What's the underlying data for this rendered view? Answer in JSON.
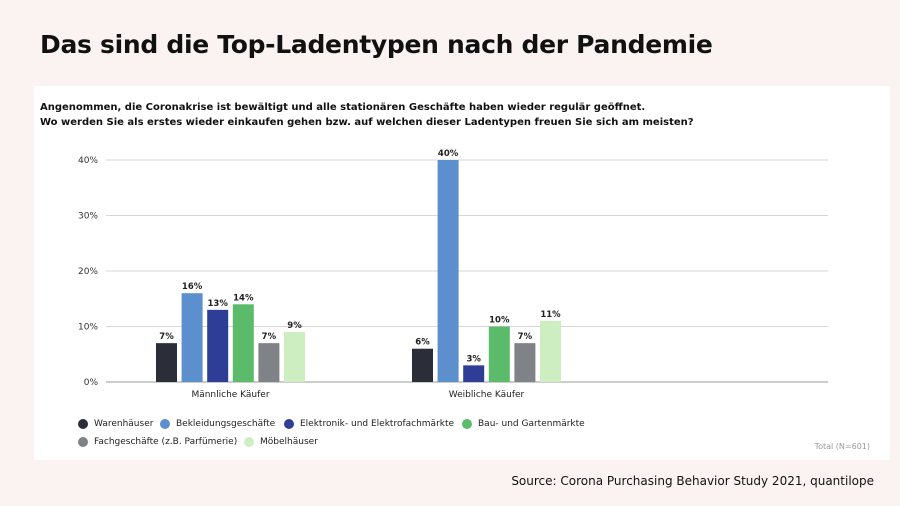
{
  "headline": "Das sind die Top-Ladentypen nach der Pandemie",
  "question": {
    "line1": "Angenommen, die Coronakrise ist bewältigt und alle stationären Geschäfte haben wieder regulär geöffnet.",
    "line2": "Wo werden Sie als erstes wieder einkaufen gehen bzw. auf welchen dieser Ladentypen freuen Sie sich am meisten?"
  },
  "total_label": "Total (N=601)",
  "source": "Source: Corona Purchasing Behavior Study 2021, quantilope",
  "chart_data": {
    "type": "bar",
    "title": "",
    "xlabel": "",
    "ylabel": "",
    "ylim": [
      0,
      40
    ],
    "yticks": [
      "0%",
      "10%",
      "20%",
      "30%",
      "40%"
    ],
    "grid": true,
    "legend_position": "bottom-left",
    "categories": [
      "Männliche Käufer",
      "Weibliche Käufer"
    ],
    "series": [
      {
        "name": "Warenhäuser",
        "color": "#2b2d38",
        "values": [
          7,
          6
        ],
        "labels": [
          "7%",
          "6%"
        ]
      },
      {
        "name": "Bekleidungsgeschäfte",
        "color": "#5b8fcd",
        "values": [
          16,
          40
        ],
        "labels": [
          "16%",
          "40%"
        ]
      },
      {
        "name": "Elektronik- und Elektrofachmärkte",
        "color": "#2e3d96",
        "values": [
          13,
          3
        ],
        "labels": [
          "13%",
          "3%"
        ]
      },
      {
        "name": "Bau- und Gartenmärkte",
        "color": "#5cbb6a",
        "values": [
          14,
          10
        ],
        "labels": [
          "14%",
          "10%"
        ]
      },
      {
        "name": "Fachgeschäfte (z.B. Parfümerie)",
        "color": "#7f8387",
        "values": [
          7,
          7
        ],
        "labels": [
          "7%",
          "7%"
        ]
      },
      {
        "name": "Möbelhäuser",
        "color": "#cdeec1",
        "values": [
          9,
          11
        ],
        "labels": [
          "9%",
          "11%"
        ]
      }
    ]
  }
}
